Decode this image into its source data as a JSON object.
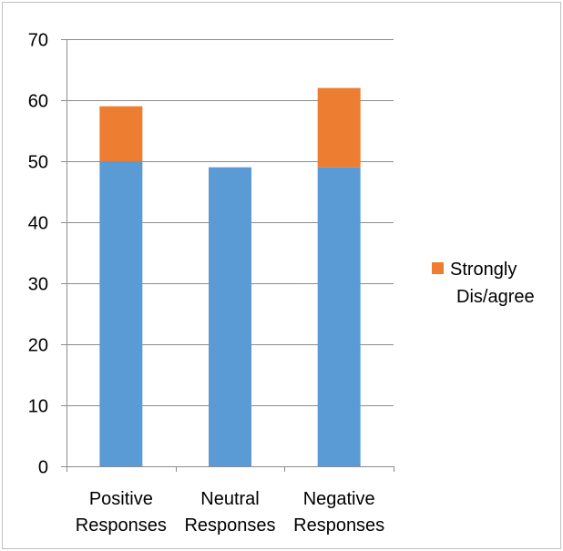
{
  "chart_data": {
    "type": "bar",
    "stacked": true,
    "categories": [
      [
        "Positive",
        "Responses"
      ],
      [
        "Neutral",
        "Responses"
      ],
      [
        "Negative",
        "Responses"
      ]
    ],
    "series": [
      {
        "values": [
          50,
          49,
          49
        ],
        "color": "#5b9bd5"
      },
      {
        "name": "Strongly Dis/agree",
        "values": [
          9,
          0,
          13
        ],
        "color": "#ed7d31"
      }
    ],
    "ylim": [
      0,
      70
    ],
    "yticks": [
      0,
      10,
      20,
      30,
      40,
      50,
      60,
      70
    ],
    "grid": true,
    "legend": {
      "placement": "right",
      "entries": [
        {
          "label_lines": [
            "Strongly",
            "Dis/agree"
          ],
          "color": "#ed7d31"
        }
      ]
    }
  }
}
